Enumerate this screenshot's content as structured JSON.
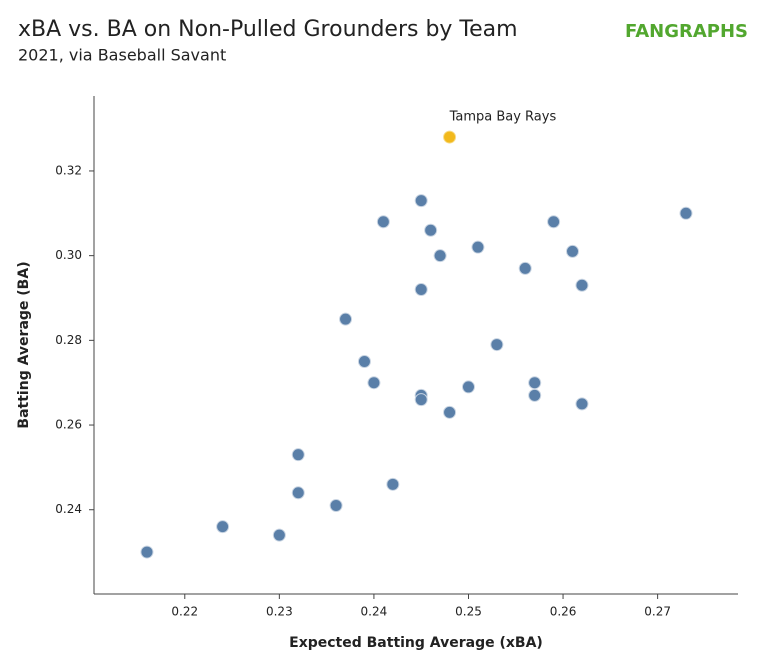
{
  "chart_data": {
    "type": "scatter",
    "title": "xBA vs. BA on Non-Pulled Grounders by Team",
    "subtitle": "2021, via Baseball Savant",
    "logo": "FANGRAPHS",
    "x_label": "Expected Batting Average (xBA)",
    "y_label": "Batting Average (BA)",
    "x": [
      0.216,
      0.224,
      0.23,
      0.232,
      0.232,
      0.236,
      0.242,
      0.237,
      0.239,
      0.24,
      0.241,
      0.245,
      0.246,
      0.247,
      0.245,
      0.245,
      0.245,
      0.248,
      0.25,
      0.251,
      0.253,
      0.256,
      0.259,
      0.261,
      0.262,
      0.257,
      0.257,
      0.262,
      0.273
    ],
    "y": [
      0.23,
      0.236,
      0.234,
      0.253,
      0.244,
      0.241,
      0.246,
      0.285,
      0.275,
      0.27,
      0.308,
      0.313,
      0.306,
      0.3,
      0.292,
      0.267,
      0.266,
      0.263,
      0.269,
      0.302,
      0.279,
      0.297,
      0.308,
      0.301,
      0.293,
      0.27,
      0.267,
      0.265,
      0.31
    ],
    "color": "#5a7fa8",
    "highlight": {
      "label": "Tampa Bay Rays",
      "x": 0.248,
      "y": 0.328,
      "color": "#f2b91c"
    },
    "xlim": [
      0.2104,
      0.2785
    ],
    "ylim": [
      0.2201,
      0.3377
    ],
    "xticks": [
      0.22,
      0.23,
      0.24,
      0.25,
      0.26,
      0.27
    ],
    "yticks": [
      0.24,
      0.26,
      0.28,
      {
        "value": 0.3,
        "label": "0.30"
      },
      0.32
    ]
  }
}
